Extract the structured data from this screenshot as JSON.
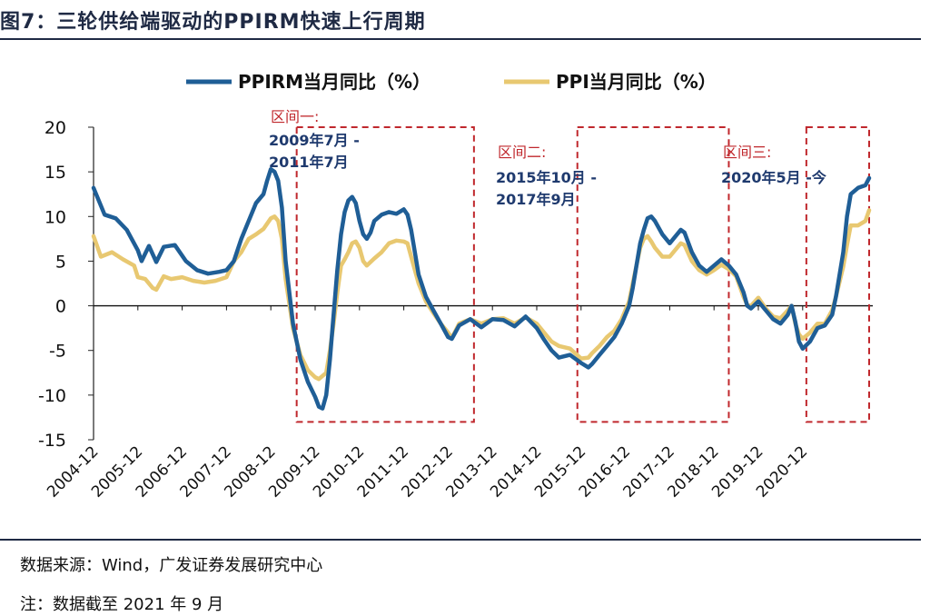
{
  "header": {
    "title": "图7：三轮供给端驱动的PPIRM快速上行周期"
  },
  "footer": {
    "source": "数据来源：Wind，广发证券发展研究中心",
    "note": "注：数据截至 2021 年 9 月"
  },
  "colors": {
    "ppirm": "#1f5e96",
    "ppi": "#e8c871",
    "box": "#c0282d",
    "annotation_range": "#1f3a6e"
  },
  "chart_data": {
    "type": "line",
    "title": "",
    "xlabel": "",
    "ylabel": "",
    "ylim": [
      -15,
      20
    ],
    "yticks": [
      "20",
      "15",
      "10",
      "5",
      "0",
      "-5",
      "-10",
      "-15"
    ],
    "x_start": "2004-12",
    "x_end": "2021-09",
    "x_ticks": [
      "2004-12",
      "2005-12",
      "2006-12",
      "2007-12",
      "2008-12",
      "2009-12",
      "2010-12",
      "2011-12",
      "2012-12",
      "2013-12",
      "2014-12",
      "2015-12",
      "2016-12",
      "2017-12",
      "2018-12",
      "2019-12",
      "2020-12"
    ],
    "legend": [
      "PPIRM当月同比（%）",
      "PPI当月同比（%）"
    ],
    "legend_position": "top",
    "series": [
      {
        "name": "PPIRM当月同比（%）",
        "points": [
          [
            0,
            13.2
          ],
          [
            3,
            10.2
          ],
          [
            6,
            9.8
          ],
          [
            9,
            8.5
          ],
          [
            12,
            6.2
          ],
          [
            13,
            5.0
          ],
          [
            15,
            6.7
          ],
          [
            17,
            4.9
          ],
          [
            19,
            6.6
          ],
          [
            22,
            6.8
          ],
          [
            25,
            5.0
          ],
          [
            28,
            4.0
          ],
          [
            31,
            3.6
          ],
          [
            34,
            3.8
          ],
          [
            36,
            4.0
          ],
          [
            38,
            5.0
          ],
          [
            40,
            7.5
          ],
          [
            42,
            9.5
          ],
          [
            44,
            11.5
          ],
          [
            46,
            12.5
          ],
          [
            47,
            14.0
          ],
          [
            48,
            15.3
          ],
          [
            49,
            15.0
          ],
          [
            50,
            14.0
          ],
          [
            51,
            11.0
          ],
          [
            52,
            5.0
          ],
          [
            54,
            -2.0
          ],
          [
            56,
            -6.0
          ],
          [
            58,
            -8.5
          ],
          [
            60,
            -10.2
          ],
          [
            61,
            -11.3
          ],
          [
            62,
            -11.5
          ],
          [
            63,
            -10.0
          ],
          [
            64,
            -6.0
          ],
          [
            65,
            -1.0
          ],
          [
            66,
            4.0
          ],
          [
            67,
            8.0
          ],
          [
            68,
            10.5
          ],
          [
            69,
            11.8
          ],
          [
            70,
            12.2
          ],
          [
            71,
            11.5
          ],
          [
            72,
            9.5
          ],
          [
            73,
            8.0
          ],
          [
            74,
            7.5
          ],
          [
            75,
            8.2
          ],
          [
            76,
            9.5
          ],
          [
            78,
            10.2
          ],
          [
            80,
            10.5
          ],
          [
            82,
            10.3
          ],
          [
            84,
            10.8
          ],
          [
            85,
            10.2
          ],
          [
            86,
            8.5
          ],
          [
            87,
            6.0
          ],
          [
            88,
            3.5
          ],
          [
            90,
            1.0
          ],
          [
            92,
            -0.5
          ],
          [
            94,
            -2.0
          ],
          [
            96,
            -3.5
          ],
          [
            97,
            -3.7
          ],
          [
            99,
            -2.2
          ],
          [
            102,
            -1.5
          ],
          [
            105,
            -2.4
          ],
          [
            108,
            -1.5
          ],
          [
            111,
            -1.6
          ],
          [
            114,
            -2.3
          ],
          [
            117,
            -1.2
          ],
          [
            120,
            -2.5
          ],
          [
            122,
            -3.8
          ],
          [
            124,
            -5.0
          ],
          [
            126,
            -5.8
          ],
          [
            129,
            -5.5
          ],
          [
            132,
            -6.4
          ],
          [
            134,
            -6.9
          ],
          [
            135,
            -6.5
          ],
          [
            137,
            -5.5
          ],
          [
            139,
            -4.5
          ],
          [
            141,
            -3.5
          ],
          [
            143,
            -2.0
          ],
          [
            145,
            0.0
          ],
          [
            146,
            2.0
          ],
          [
            147,
            4.5
          ],
          [
            148,
            7.0
          ],
          [
            149,
            8.5
          ],
          [
            150,
            9.8
          ],
          [
            151,
            10.0
          ],
          [
            152,
            9.5
          ],
          [
            154,
            8.0
          ],
          [
            156,
            7.0
          ],
          [
            158,
            8.0
          ],
          [
            159,
            8.5
          ],
          [
            160,
            8.2
          ],
          [
            162,
            6.0
          ],
          [
            164,
            4.5
          ],
          [
            166,
            3.8
          ],
          [
            168,
            4.5
          ],
          [
            170,
            5.2
          ],
          [
            172,
            4.5
          ],
          [
            174,
            3.5
          ],
          [
            176,
            1.5
          ],
          [
            177,
            0.0
          ],
          [
            178,
            -0.3
          ],
          [
            180,
            0.5
          ],
          [
            182,
            -0.5
          ],
          [
            184,
            -1.5
          ],
          [
            186,
            -2.0
          ],
          [
            188,
            -1.0
          ],
          [
            189,
            0.0
          ],
          [
            190,
            -1.8
          ],
          [
            191,
            -4.0
          ],
          [
            192,
            -4.8
          ],
          [
            194,
            -4.0
          ],
          [
            196,
            -2.5
          ],
          [
            198,
            -2.2
          ],
          [
            200,
            -1.0
          ],
          [
            201,
            1.0
          ],
          [
            203,
            6.0
          ],
          [
            204,
            10.0
          ],
          [
            205,
            12.5
          ],
          [
            207,
            13.2
          ],
          [
            209,
            13.5
          ],
          [
            210,
            14.3
          ]
        ]
      },
      {
        "name": "PPI当月同比（%）",
        "points": [
          [
            0,
            7.8
          ],
          [
            2,
            5.5
          ],
          [
            5,
            6.0
          ],
          [
            8,
            5.2
          ],
          [
            11,
            4.5
          ],
          [
            12,
            3.2
          ],
          [
            14,
            3.0
          ],
          [
            16,
            2.0
          ],
          [
            17,
            1.8
          ],
          [
            19,
            3.3
          ],
          [
            21,
            3.0
          ],
          [
            24,
            3.2
          ],
          [
            27,
            2.8
          ],
          [
            30,
            2.6
          ],
          [
            33,
            2.8
          ],
          [
            36,
            3.2
          ],
          [
            38,
            5.0
          ],
          [
            40,
            6.0
          ],
          [
            42,
            7.5
          ],
          [
            44,
            8.0
          ],
          [
            46,
            8.6
          ],
          [
            48,
            9.8
          ],
          [
            49,
            10.0
          ],
          [
            50,
            9.5
          ],
          [
            51,
            7.5
          ],
          [
            52,
            3.0
          ],
          [
            54,
            -2.5
          ],
          [
            56,
            -5.5
          ],
          [
            58,
            -7.2
          ],
          [
            60,
            -8.0
          ],
          [
            61,
            -8.2
          ],
          [
            63,
            -7.5
          ],
          [
            64,
            -5.0
          ],
          [
            65,
            -2.0
          ],
          [
            66,
            1.5
          ],
          [
            67,
            4.5
          ],
          [
            68,
            5.2
          ],
          [
            69,
            6.0
          ],
          [
            70,
            7.0
          ],
          [
            71,
            7.2
          ],
          [
            72,
            6.5
          ],
          [
            73,
            5.0
          ],
          [
            74,
            4.5
          ],
          [
            76,
            5.3
          ],
          [
            78,
            6.0
          ],
          [
            80,
            7.0
          ],
          [
            82,
            7.3
          ],
          [
            84,
            7.2
          ],
          [
            85,
            7.0
          ],
          [
            86,
            5.5
          ],
          [
            87,
            4.0
          ],
          [
            88,
            2.5
          ],
          [
            90,
            0.5
          ],
          [
            92,
            -0.8
          ],
          [
            94,
            -2.0
          ],
          [
            96,
            -3.0
          ],
          [
            97,
            -3.6
          ],
          [
            99,
            -2.0
          ],
          [
            102,
            -1.5
          ],
          [
            105,
            -2.0
          ],
          [
            108,
            -1.5
          ],
          [
            111,
            -1.4
          ],
          [
            114,
            -2.0
          ],
          [
            117,
            -1.3
          ],
          [
            120,
            -2.0
          ],
          [
            122,
            -3.0
          ],
          [
            124,
            -4.0
          ],
          [
            126,
            -4.5
          ],
          [
            129,
            -4.8
          ],
          [
            132,
            -5.9
          ],
          [
            134,
            -5.8
          ],
          [
            135,
            -5.3
          ],
          [
            137,
            -4.5
          ],
          [
            139,
            -3.5
          ],
          [
            141,
            -2.8
          ],
          [
            143,
            -1.5
          ],
          [
            145,
            0.5
          ],
          [
            146,
            2.5
          ],
          [
            147,
            4.5
          ],
          [
            148,
            6.5
          ],
          [
            149,
            7.5
          ],
          [
            150,
            7.8
          ],
          [
            151,
            7.2
          ],
          [
            152,
            6.5
          ],
          [
            154,
            5.5
          ],
          [
            156,
            5.5
          ],
          [
            158,
            6.5
          ],
          [
            159,
            7.0
          ],
          [
            160,
            6.8
          ],
          [
            162,
            5.0
          ],
          [
            164,
            4.0
          ],
          [
            166,
            3.5
          ],
          [
            168,
            4.0
          ],
          [
            170,
            4.6
          ],
          [
            172,
            4.1
          ],
          [
            174,
            3.3
          ],
          [
            176,
            1.0
          ],
          [
            177,
            0.1
          ],
          [
            178,
            0.0
          ],
          [
            180,
            0.9
          ],
          [
            182,
            -0.3
          ],
          [
            184,
            -1.2
          ],
          [
            186,
            -1.4
          ],
          [
            188,
            -0.5
          ],
          [
            189,
            0.0
          ],
          [
            190,
            -2.0
          ],
          [
            191,
            -3.2
          ],
          [
            192,
            -3.7
          ],
          [
            194,
            -3.0
          ],
          [
            196,
            -2.0
          ],
          [
            198,
            -2.0
          ],
          [
            200,
            -0.5
          ],
          [
            201,
            1.0
          ],
          [
            203,
            4.4
          ],
          [
            204,
            6.8
          ],
          [
            205,
            9.0
          ],
          [
            207,
            9.0
          ],
          [
            209,
            9.5
          ],
          [
            210,
            10.7
          ]
        ]
      }
    ],
    "annotations": [
      {
        "label": "区间一:",
        "range": [
          "2009年7月 -",
          "2011年7月"
        ],
        "x_from_month": 55,
        "x_to_month": 103
      },
      {
        "label": "区间二:",
        "range": [
          "2015年10月 -",
          "2017年9月"
        ],
        "x_from_month": 131,
        "x_to_month": 172
      },
      {
        "label": "区间三:",
        "range": [
          "2020年5月 -今"
        ],
        "x_from_month": 193,
        "x_to_month": 210
      }
    ]
  }
}
